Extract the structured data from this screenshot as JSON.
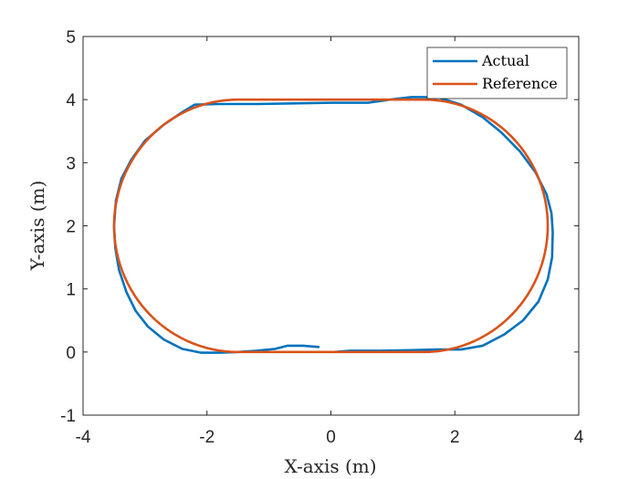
{
  "chart_data": {
    "type": "line",
    "xlabel": "X-axis (m)",
    "ylabel": "Y-axis (m)",
    "xlim": [
      -4,
      4
    ],
    "ylim": [
      -1,
      5
    ],
    "xticks": [
      -4,
      -2,
      0,
      2,
      4
    ],
    "yticks": [
      -1,
      0,
      1,
      2,
      3,
      4,
      5
    ],
    "grid": false,
    "legend": "top-right",
    "series": [
      {
        "name": "Actual",
        "color": "#0072BD",
        "x": [
          -0.2,
          -0.45,
          -0.7,
          -0.9,
          -1.2,
          -1.5,
          -1.8,
          -2.1,
          -2.4,
          -2.7,
          -2.95,
          -3.15,
          -3.3,
          -3.42,
          -3.48,
          -3.5,
          -3.47,
          -3.38,
          -3.22,
          -3.0,
          -2.7,
          -2.4,
          -2.2,
          -1.8,
          -1.2,
          -0.6,
          0.0,
          0.6,
          0.95,
          1.3,
          1.5,
          1.75,
          2.1,
          2.45,
          2.75,
          3.05,
          3.3,
          3.48,
          3.56,
          3.58,
          3.57,
          3.5,
          3.35,
          3.1,
          2.8,
          2.45,
          2.1,
          1.7,
          1.3,
          0.8,
          0.3,
          0.05
        ],
        "y": [
          0.08,
          0.1,
          0.1,
          0.05,
          0.02,
          0.0,
          -0.01,
          -0.01,
          0.05,
          0.2,
          0.4,
          0.65,
          0.95,
          1.3,
          1.65,
          2.0,
          2.4,
          2.75,
          3.05,
          3.35,
          3.6,
          3.8,
          3.92,
          3.93,
          3.93,
          3.94,
          3.95,
          3.95,
          4.0,
          4.04,
          4.04,
          4.03,
          3.92,
          3.72,
          3.48,
          3.18,
          2.85,
          2.5,
          2.2,
          1.9,
          1.5,
          1.15,
          0.8,
          0.5,
          0.28,
          0.1,
          0.04,
          0.04,
          0.03,
          0.02,
          0.02,
          0.0
        ]
      },
      {
        "name": "Reference",
        "color": "#D95319",
        "path": "stadium",
        "straight_x": [
          -1.5,
          1.5
        ],
        "radius": 2,
        "center_y": 2
      }
    ]
  }
}
